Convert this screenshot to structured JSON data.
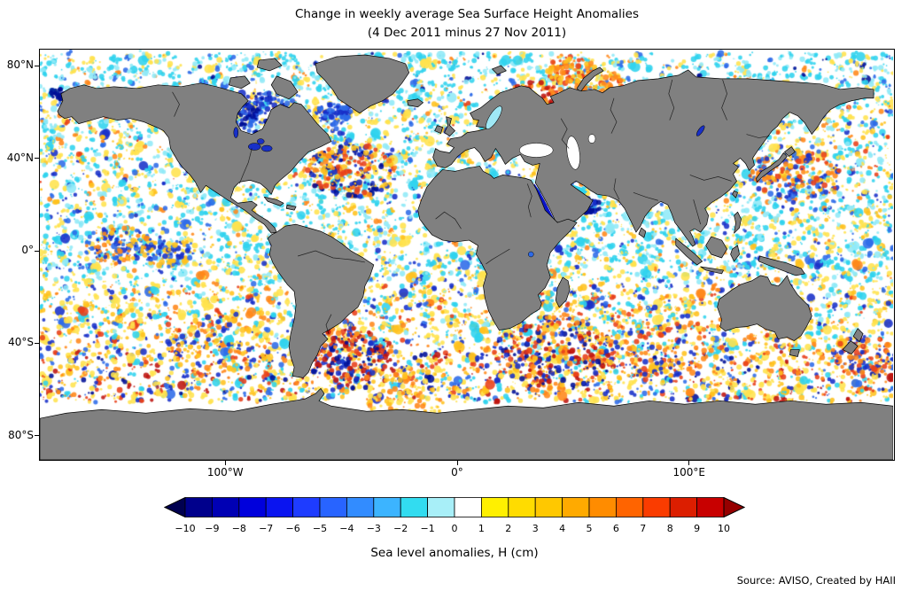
{
  "title": {
    "line1": "Change in weekly average Sea Surface Height Anomalies",
    "line2": "(4 Dec 2011 minus 27 Nov 2011)"
  },
  "map": {
    "land_color": "#808080",
    "coast_color": "#000000",
    "ocean_color": "#ffffff",
    "axes": {
      "lat_ticks": [
        {
          "value": 80,
          "label": "80°N"
        },
        {
          "value": 40,
          "label": "40°N"
        },
        {
          "value": 0,
          "label": "0°"
        },
        {
          "value": -40,
          "label": "40°S"
        },
        {
          "value": -80,
          "label": "80°S"
        }
      ],
      "lon_ticks": [
        {
          "value": -100,
          "label": "100°W"
        },
        {
          "value": 0,
          "label": "0°"
        },
        {
          "value": 100,
          "label": "100°E"
        }
      ]
    },
    "anomaly_colors": {
      "cyan": "#2FD3EE",
      "pale_cyan": "#8FE9F7",
      "yellow": "#FFE34D",
      "gold": "#FFC21E",
      "orange": "#FF8719",
      "red": "#E8401A",
      "dark_red": "#BE1410",
      "blue": "#2E6BE8",
      "dark_blue": "#1830C8",
      "navy": "#000F96"
    }
  },
  "colorbar": {
    "label": "Sea level anomalies, H (cm)",
    "ticks": [
      -10,
      -9,
      -8,
      -7,
      -6,
      -5,
      -4,
      -3,
      -2,
      -1,
      0,
      1,
      2,
      3,
      4,
      5,
      6,
      7,
      8,
      9,
      10
    ],
    "tick_labels": [
      "−10",
      "−9",
      "−8",
      "−7",
      "−6",
      "−5",
      "−4",
      "−3",
      "−2",
      "−1",
      "0",
      "1",
      "2",
      "3",
      "4",
      "5",
      "6",
      "7",
      "8",
      "9",
      "10"
    ],
    "segment_colors": [
      "#00008C",
      "#0000B4",
      "#0000DC",
      "#0A14F0",
      "#1E3CFF",
      "#2864FF",
      "#328CFF",
      "#3CB4FF",
      "#32DCF0",
      "#A8EFF8",
      "#FFFFFF",
      "#FFF000",
      "#FFDC00",
      "#FFC800",
      "#FFAA00",
      "#FF8C00",
      "#FF6400",
      "#FA3C00",
      "#DC1E00",
      "#C80000"
    ],
    "under_color": "#000050",
    "over_color": "#960000"
  },
  "source": "Source: AVISO, Created by HAII"
}
